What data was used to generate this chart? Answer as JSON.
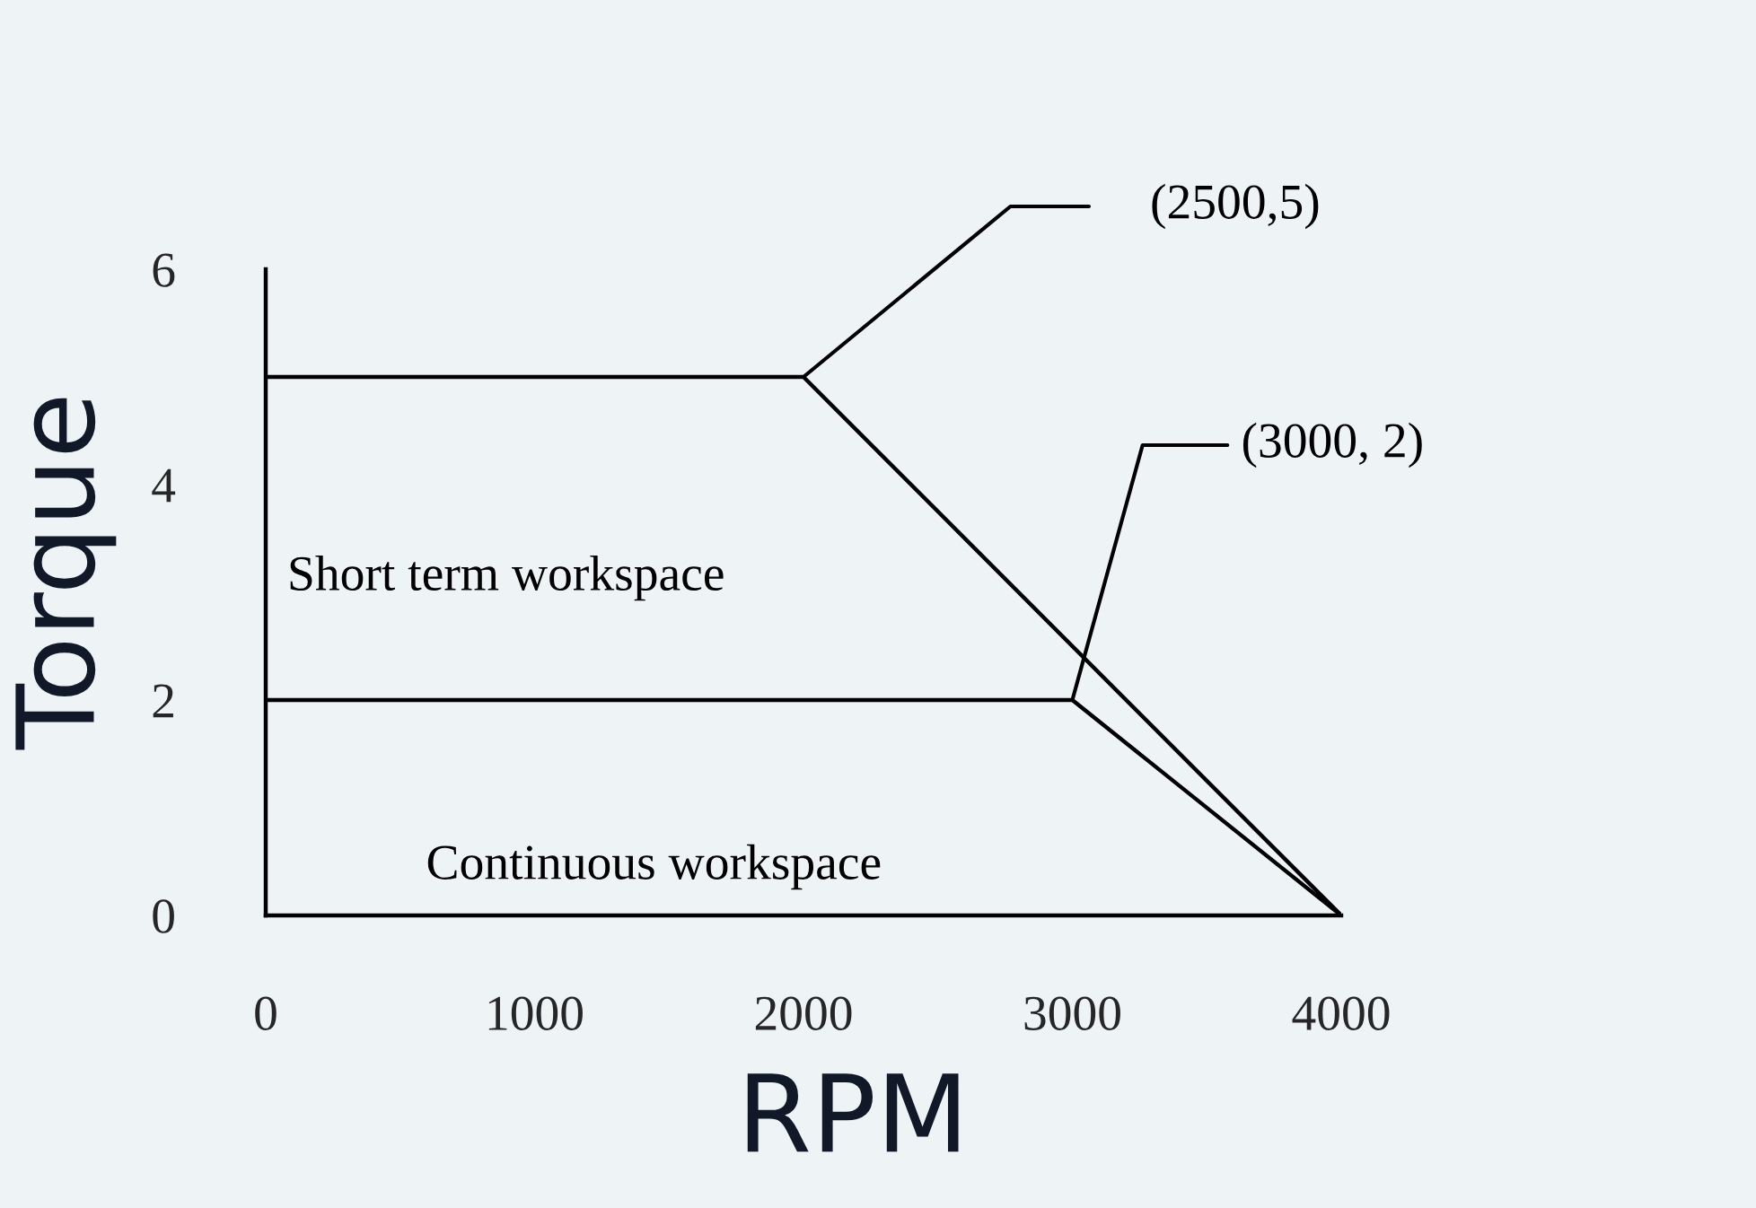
{
  "chart_data": {
    "type": "line",
    "xlabel": "RPM",
    "ylabel": "Torque",
    "series": [
      {
        "color": "#000000",
        "x": [
          0,
          2000,
          4000
        ],
        "values": [
          5,
          5,
          0
        ]
      },
      {
        "color": "#000000",
        "x": [
          0,
          3000,
          4000
        ],
        "values": [
          2,
          2,
          0
        ]
      }
    ],
    "xlim": [
      0,
      4000
    ],
    "xticks": [
      0,
      1000,
      2000,
      3000,
      4000
    ],
    "ylim": [
      0,
      6
    ],
    "yticks": [
      0,
      2,
      4,
      6
    ],
    "annotations": [
      {
        "text": "(2500,5)",
        "x": 2000,
        "y": 5
      },
      {
        "text": "(3000, 2)",
        "x": 3000,
        "y": 2
      },
      "Short term workspace",
      "Continuous workspace"
    ],
    "grid": false,
    "marker": "none",
    "line_style": "solid"
  }
}
